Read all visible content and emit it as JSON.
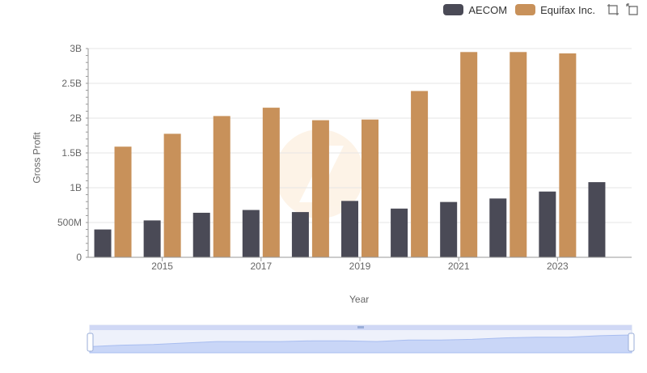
{
  "legend": {
    "items": [
      {
        "label": "AECOM",
        "color": "#4a4a56"
      },
      {
        "label": "Equifax Inc.",
        "color": "#c8915a"
      }
    ]
  },
  "toolbox": {
    "icons": [
      "zoom-icon",
      "restore-icon"
    ]
  },
  "chart_data": {
    "type": "bar",
    "title": "",
    "xlabel": "Year",
    "ylabel": "Gross Profit",
    "categories": [
      "2014",
      "2015",
      "2016",
      "2017",
      "2018",
      "2019",
      "2020",
      "2021",
      "2022",
      "2023",
      "2024"
    ],
    "x_tick_labels": [
      "2015",
      "2017",
      "2019",
      "2021",
      "2023"
    ],
    "y_tick_labels": [
      "0",
      "500M",
      "1B",
      "1.5B",
      "2B",
      "2.5B",
      "3B"
    ],
    "ylim": [
      0,
      3000000000
    ],
    "grid": true,
    "legend_position": "top-right",
    "series": [
      {
        "name": "AECOM",
        "color": "#4a4a56",
        "values": [
          400000000,
          530000000,
          640000000,
          680000000,
          650000000,
          810000000,
          700000000,
          795000000,
          845000000,
          945000000,
          1080000000
        ]
      },
      {
        "name": "Equifax Inc.",
        "color": "#c8915a",
        "values": [
          1590000000,
          1775000000,
          2030000000,
          2150000000,
          1970000000,
          1980000000,
          2390000000,
          2950000000,
          2950000000,
          2930000000,
          null
        ]
      }
    ]
  },
  "datazoom": {
    "overview_values": [
      0.2,
      0.3,
      0.35,
      0.45,
      0.55,
      0.55,
      0.55,
      0.6,
      0.6,
      0.55,
      0.65,
      0.65,
      0.7,
      0.8,
      0.85,
      0.85,
      0.95,
      1.0
    ]
  }
}
